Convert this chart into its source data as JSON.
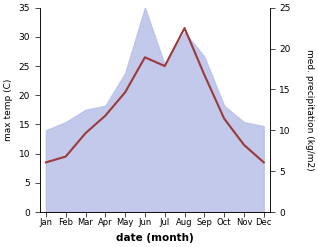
{
  "months": [
    "Jan",
    "Feb",
    "Mar",
    "Apr",
    "May",
    "Jun",
    "Jul",
    "Aug",
    "Sep",
    "Oct",
    "Nov",
    "Dec"
  ],
  "month_indices": [
    0,
    1,
    2,
    3,
    4,
    5,
    6,
    7,
    8,
    9,
    10,
    11
  ],
  "temperature": [
    8.5,
    9.5,
    13.5,
    16.5,
    20.5,
    26.5,
    25.0,
    31.5,
    23.5,
    16.0,
    11.5,
    8.5
  ],
  "precipitation": [
    10.0,
    11.0,
    12.5,
    13.0,
    17.0,
    25.0,
    18.0,
    22.0,
    19.0,
    13.0,
    11.0,
    10.5
  ],
  "temp_color": "#9b3a3a",
  "precip_color": "#b8c0e8",
  "temp_ylim": [
    0,
    35
  ],
  "precip_ylim": [
    0,
    25
  ],
  "temp_yticks": [
    0,
    5,
    10,
    15,
    20,
    25,
    30,
    35
  ],
  "precip_yticks": [
    0,
    5,
    10,
    15,
    20,
    25
  ],
  "xlabel": "date (month)",
  "ylabel_left": "max temp (C)",
  "ylabel_right": "med. precipitation (kg/m2)",
  "bg_color": "#ffffff",
  "figsize": [
    3.18,
    2.47
  ],
  "dpi": 100
}
